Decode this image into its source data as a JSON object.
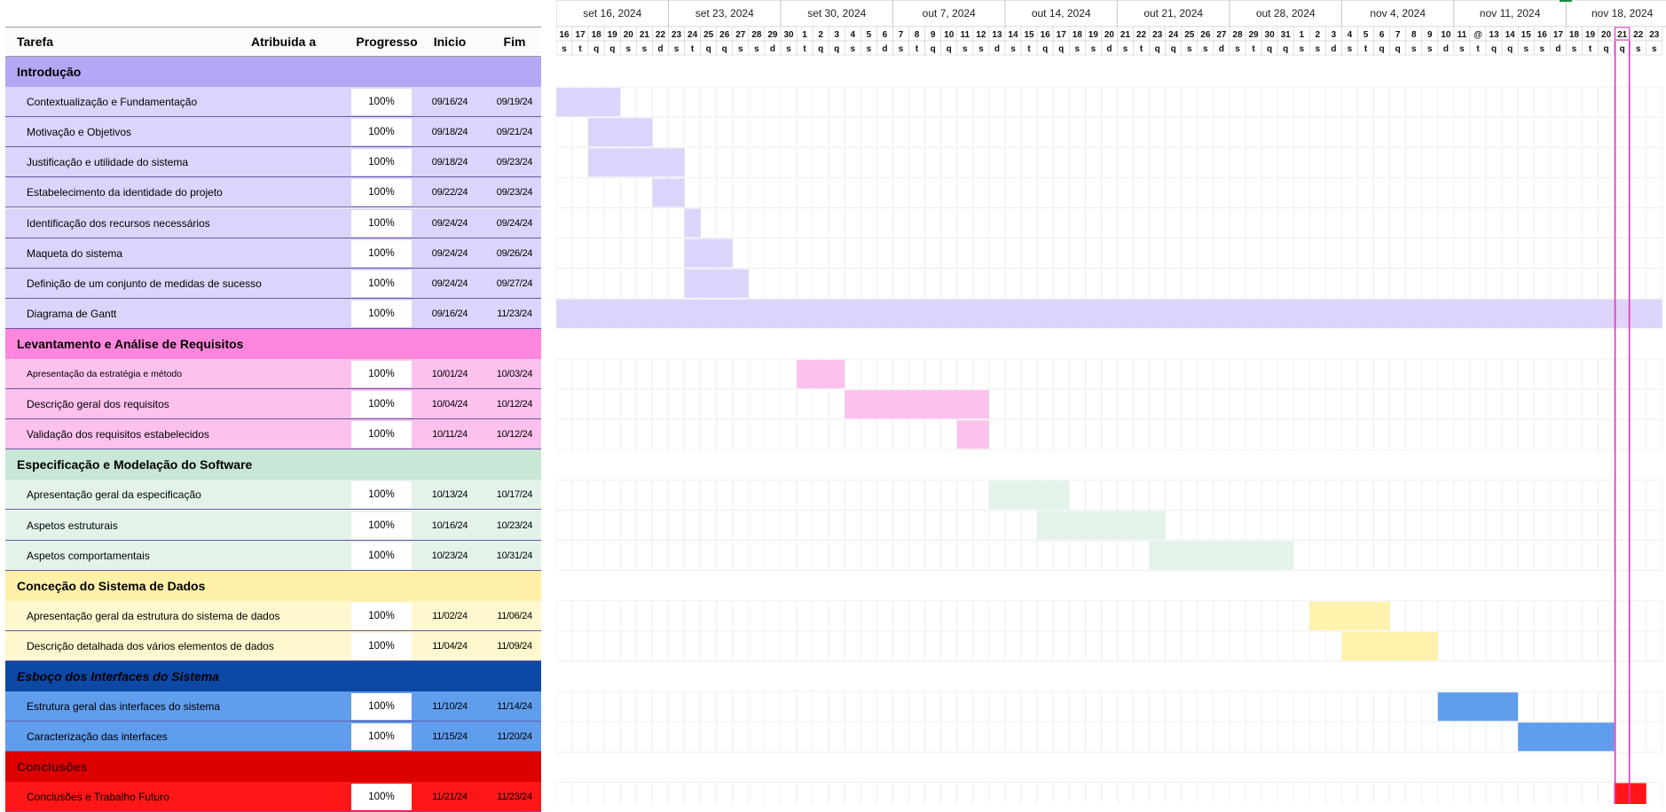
{
  "table": {
    "headers": {
      "task": "Tarefa",
      "assigned": "Atribuida a",
      "progress": "Progresso",
      "start": "Inicio",
      "end": "Fim"
    },
    "rows": [
      {
        "type": "group",
        "label": "Introdução",
        "bg": "#b4a7f5",
        "color": "#000000",
        "italic": false
      },
      {
        "type": "task",
        "label": "Contextualização e Fundamentação",
        "progress": "100%",
        "start": "09/16/24",
        "end": "09/19/24",
        "bg": "#ddd4fb",
        "bar": "#ddd4fb",
        "s": 0,
        "e": 3
      },
      {
        "type": "task",
        "label": "Motivação e Objetivos",
        "progress": "100%",
        "start": "09/18/24",
        "end": "09/21/24",
        "bg": "#ddd4fb",
        "bar": "#ddd4fb",
        "s": 2,
        "e": 5
      },
      {
        "type": "task",
        "label": "Justificação e utilidade do sistema",
        "progress": "100%",
        "start": "09/18/24",
        "end": "09/23/24",
        "bg": "#ddd4fb",
        "bar": "#ddd4fb",
        "s": 2,
        "e": 7
      },
      {
        "type": "task",
        "label": "Estabelecimento da identidade do projeto",
        "progress": "100%",
        "start": "09/22/24",
        "end": "09/23/24",
        "bg": "#ddd4fb",
        "bar": "#ddd4fb",
        "s": 6,
        "e": 7
      },
      {
        "type": "task",
        "label": "Identificação dos recursos necessários",
        "progress": "100%",
        "start": "09/24/24",
        "end": "09/24/24",
        "bg": "#ddd4fb",
        "bar": "#ddd4fb",
        "s": 8,
        "e": 8
      },
      {
        "type": "task",
        "label": "Maqueta do sistema",
        "progress": "100%",
        "start": "09/24/24",
        "end": "09/26/24",
        "bg": "#ddd4fb",
        "bar": "#ddd4fb",
        "s": 8,
        "e": 10
      },
      {
        "type": "task",
        "label": "Definição de um conjunto de medidas de sucesso",
        "progress": "100%",
        "start": "09/24/24",
        "end": "09/27/24",
        "bg": "#ddd4fb",
        "bar": "#ddd4fb",
        "s": 8,
        "e": 11
      },
      {
        "type": "task",
        "label": "Diagrama de Gantt",
        "progress": "100%",
        "start": "09/16/24",
        "end": "11/23/24",
        "bg": "#ddd4fb",
        "bar": "#ddd4fb",
        "s": 0,
        "e": 68
      },
      {
        "type": "group",
        "label": "Levantamento e Análise de Requisitos",
        "bg": "#ff86dd",
        "color": "#000000",
        "italic": false
      },
      {
        "type": "task",
        "label": "Apresentação da estratégia e método",
        "progress": "100%",
        "start": "10/01/24",
        "end": "10/03/24",
        "bg": "#fdc1ee",
        "bar": "#fdc1ee",
        "s": 15,
        "e": 17,
        "small": true
      },
      {
        "type": "task",
        "label": "Descrição geral dos requisitos",
        "progress": "100%",
        "start": "10/04/24",
        "end": "10/12/24",
        "bg": "#fdc1ee",
        "bar": "#fdc1ee",
        "s": 18,
        "e": 26
      },
      {
        "type": "task",
        "label": "Validação dos requisitos estabelecidos",
        "progress": "100%",
        "start": "10/11/24",
        "end": "10/12/24",
        "bg": "#fdc1ee",
        "bar": "#fdc1ee",
        "s": 25,
        "e": 26
      },
      {
        "type": "group",
        "label": "Especificação e Modelação do Software",
        "bg": "#c8e7d6",
        "color": "#000000",
        "italic": false
      },
      {
        "type": "task",
        "label": "Apresentação geral da especificação",
        "progress": "100%",
        "start": "10/13/24",
        "end": "10/17/24",
        "bg": "#e3f3ea",
        "bar": "#e3f3ea",
        "s": 27,
        "e": 31
      },
      {
        "type": "task",
        "label": "Aspetos estruturais",
        "progress": "100%",
        "start": "10/16/24",
        "end": "10/23/24",
        "bg": "#e3f3ea",
        "bar": "#e3f3ea",
        "s": 30,
        "e": 37
      },
      {
        "type": "task",
        "label": "Aspetos comportamentais",
        "progress": "100%",
        "start": "10/23/24",
        "end": "10/31/24",
        "bg": "#e3f3ea",
        "bar": "#e3f3ea",
        "s": 37,
        "e": 45
      },
      {
        "type": "group",
        "label": "Conceção do Sistema de Dados",
        "bg": "#fff0a8",
        "color": "#000000",
        "italic": false
      },
      {
        "type": "task",
        "label": "Apresentação geral da estrutura do sistema de dados",
        "progress": "100%",
        "start": "11/02/24",
        "end": "11/06/24",
        "bg": "#fff7cd",
        "bar": "#fff3ad",
        "s": 47,
        "e": 51
      },
      {
        "type": "task",
        "label": "Descrição detalhada dos vários elementos de dados",
        "progress": "100%",
        "start": "11/04/24",
        "end": "11/09/24",
        "bg": "#fff7cd",
        "bar": "#fff3ad",
        "s": 49,
        "e": 54
      },
      {
        "type": "group",
        "label": "Esboço dos Interfaces do Sistema",
        "bg": "#0c48a4",
        "color": "#000000",
        "italic": true
      },
      {
        "type": "task",
        "label": "Estrutura geral das interfaces do sistema",
        "progress": "100%",
        "start": "11/10/24",
        "end": "11/14/24",
        "bg": "#609ded",
        "bar": "#609ded",
        "s": 55,
        "e": 59
      },
      {
        "type": "task",
        "label": "Caracterização das interfaces",
        "progress": "100%",
        "start": "11/15/24",
        "end": "11/20/24",
        "bg": "#609ded",
        "bar": "#609ded",
        "s": 60,
        "e": 65
      },
      {
        "type": "group",
        "label": "Conclusões",
        "bg": "#dd0000",
        "color": "#4a0000",
        "italic": false
      },
      {
        "type": "task",
        "label": "Conclusões e Trabalho Futuro",
        "progress": "100%",
        "start": "11/21/24",
        "end": "11/23/24",
        "bg": "#ff1717",
        "bar": "#ff1717",
        "s": 66,
        "e": 67
      }
    ]
  },
  "timeline": {
    "weeks": [
      "set 16, 2024",
      "set 23, 2024",
      "set 30, 2024",
      "out 7, 2024",
      "out 14, 2024",
      "out 21, 2024",
      "out 28, 2024",
      "nov 4, 2024",
      "nov 11, 2024",
      "nov 18, 2024"
    ],
    "days": [
      "16",
      "17",
      "18",
      "19",
      "20",
      "21",
      "22",
      "23",
      "24",
      "25",
      "26",
      "27",
      "28",
      "29",
      "30",
      "1",
      "2",
      "3",
      "4",
      "5",
      "6",
      "7",
      "8",
      "9",
      "10",
      "11",
      "12",
      "13",
      "14",
      "15",
      "16",
      "17",
      "18",
      "19",
      "20",
      "21",
      "22",
      "23",
      "24",
      "25",
      "26",
      "27",
      "28",
      "29",
      "30",
      "31",
      "1",
      "2",
      "3",
      "4",
      "5",
      "6",
      "7",
      "8",
      "9",
      "10",
      "11",
      "@",
      "13",
      "14",
      "15",
      "16",
      "17",
      "18",
      "19",
      "20",
      "21",
      "22",
      "23"
    ],
    "weekday_letters": [
      "s",
      "t",
      "q",
      "q",
      "s",
      "s",
      "d"
    ],
    "today_index": 67,
    "today_color": "#e82fc4",
    "today_date_fill": "#ff1b1b"
  }
}
